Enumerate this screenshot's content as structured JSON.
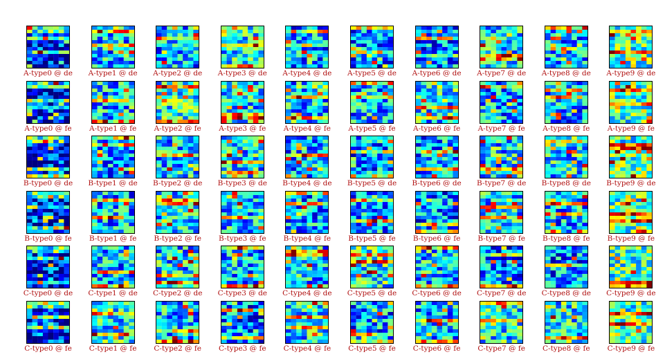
{
  "chart_data": {
    "type": "heatmap",
    "grid": {
      "rows": 6,
      "cols": 10
    },
    "colormap": "jet",
    "colors": {
      "caption": "#b01010",
      "frame": "#000000"
    },
    "panels_cells": [
      8,
      12
    ],
    "captions": [
      [
        "A-type0 @ de",
        "A-type1 @ de",
        "A-type2 @ de",
        "A-type3 @ de",
        "A-type4 @ de",
        "A-type5 @ de",
        "A-type6 @ de",
        "A-type7 @ de",
        "A-type8 @ de",
        "A-type9 @ de"
      ],
      [
        "A-type0 @ fe",
        "A-type1 @ fe",
        "A-type2 @ fe",
        "A-type3 @ fe",
        "A-type4 @ fe",
        "A-type5 @ fe",
        "A-type6 @ fe",
        "A-type7 @ fe",
        "A-type8 @ fe",
        "A-type9 @ fe"
      ],
      [
        "B-type0 @ de",
        "B-type1 @ de",
        "B-type2 @ de",
        "B-type3 @ de",
        "B-type4 @ de",
        "B-type5 @ de",
        "B-type6 @ de",
        "B-type7 @ de",
        "B-type8 @ de",
        "B-type9 @ de"
      ],
      [
        "B-type0 @ fe",
        "B-type1 @ fe",
        "B-type2 @ fe",
        "B-type3 @ fe",
        "B-type4 @ fe",
        "B-type5 @ fe",
        "B-type6 @ fe",
        "B-type7 @ fe",
        "B-type8 @ fe",
        "B-type9 @ fe"
      ],
      [
        "C-type0 @ de",
        "C-type1 @ de",
        "C-type2 @ de",
        "C-type3 @ de",
        "C-type4 @ de",
        "C-type5 @ de",
        "C-type6 @ de",
        "C-type7 @ de",
        "C-type8 @ de",
        "C-type9 @ de"
      ],
      [
        "C-type0 @ fe",
        "C-type1 @ fe",
        "C-type2 @ fe",
        "C-type3 @ fe",
        "C-type4 @ fe",
        "C-type5 @ fe",
        "C-type6 @ fe",
        "C-type7 @ fe",
        "C-type8 @ fe",
        "C-type9 @ fe"
      ]
    ]
  }
}
